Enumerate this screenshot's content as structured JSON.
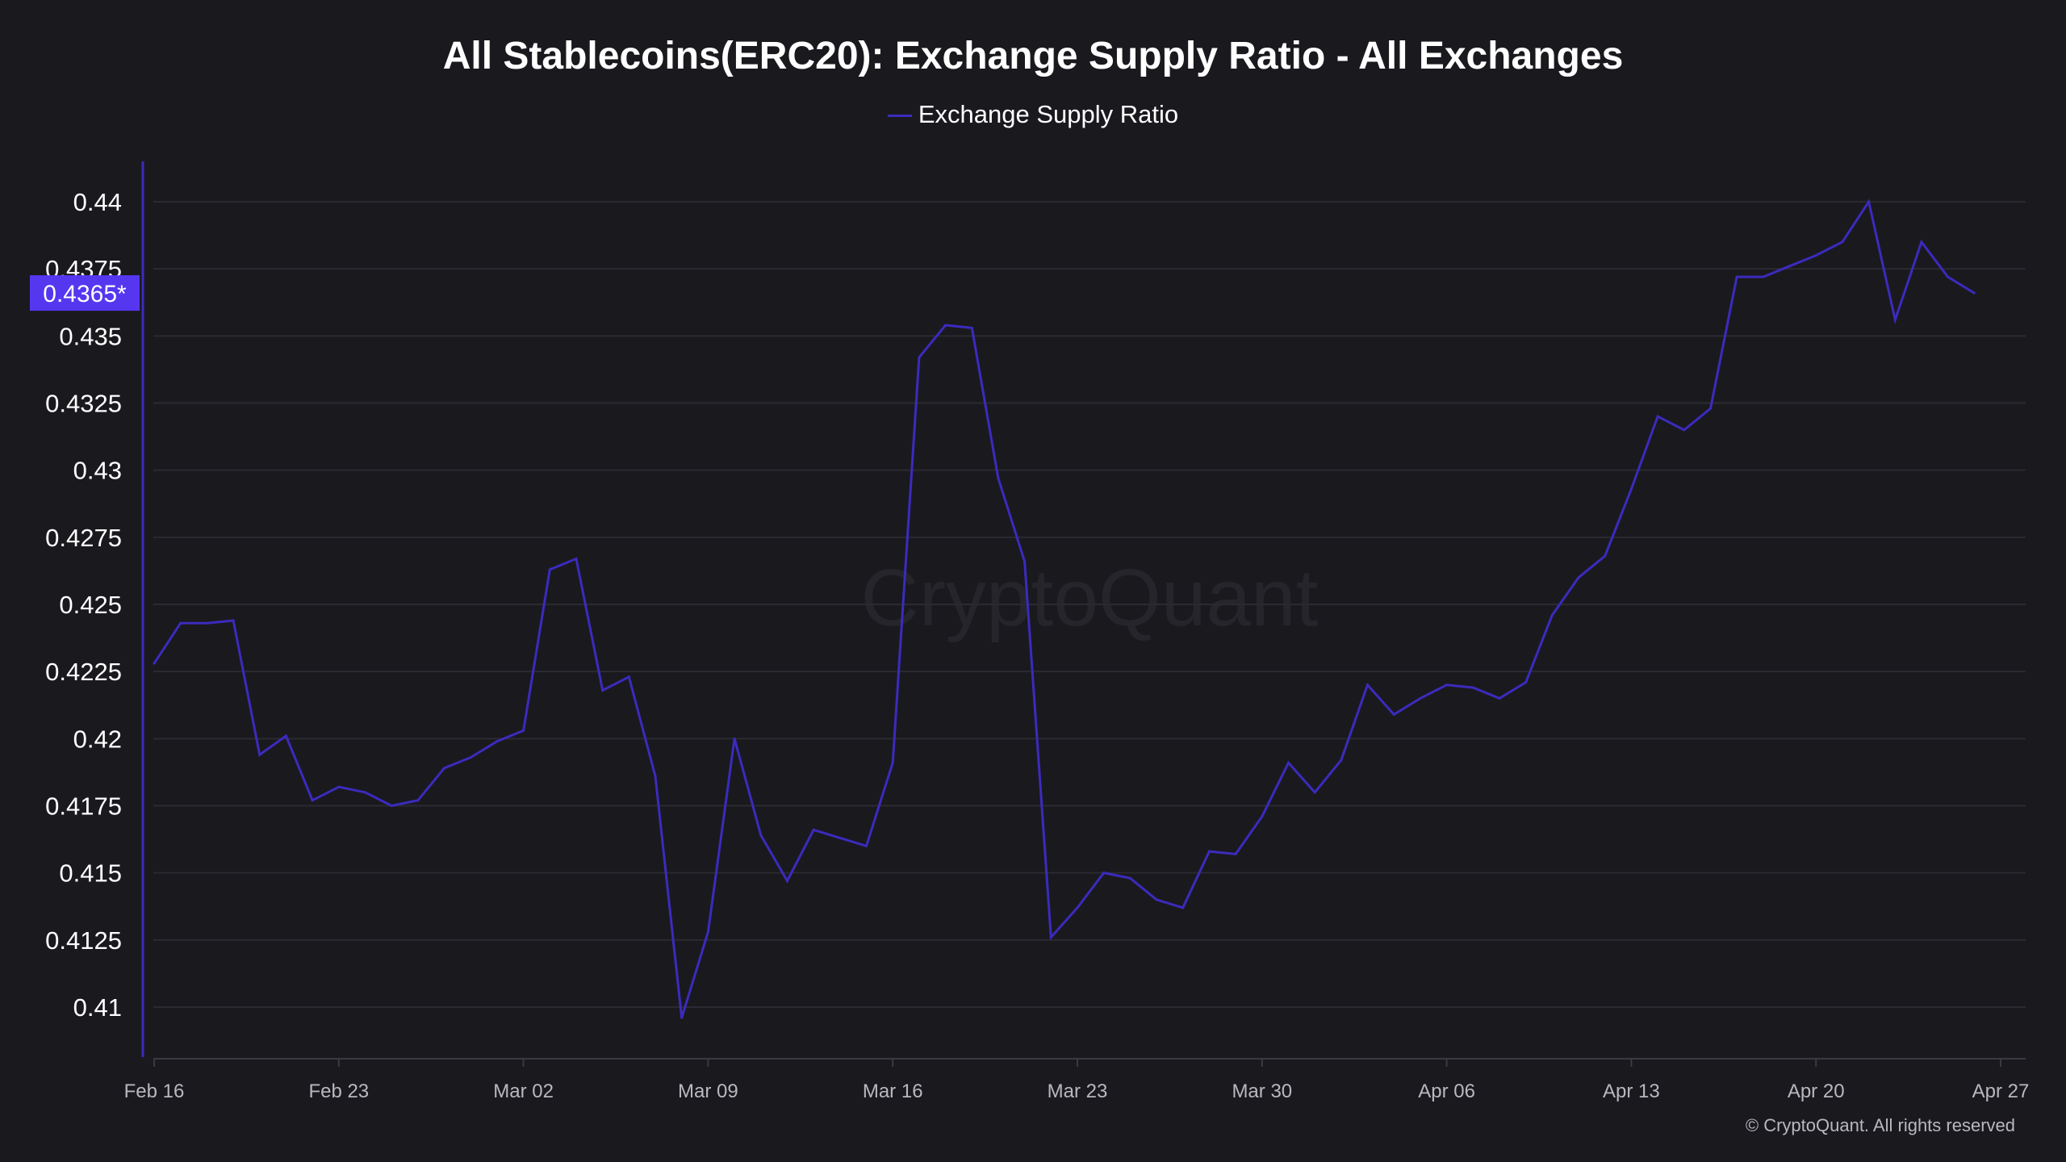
{
  "chart_data": {
    "type": "line",
    "title": "All Stablecoins(ERC20): Exchange Supply Ratio - All Exchanges",
    "legend": [
      "Exchange Supply Ratio"
    ],
    "legend_position": "top-center",
    "watermark": "CryptoQuant",
    "copyright": "© CryptoQuant. All rights reserved",
    "current_value_label": "0.4365*",
    "line_color": "#3b2bbd",
    "badge_color": "#5637f0",
    "background_color": "#1a191e",
    "grid": true,
    "ylim": [
      0.4092,
      0.4407
    ],
    "yticks": [
      "0.44",
      "0.4375",
      "0.435",
      "0.4325",
      "0.43",
      "0.4275",
      "0.425",
      "0.4225",
      "0.42",
      "0.4175",
      "0.415",
      "0.4125",
      "0.41"
    ],
    "xticks": [
      "Feb 16",
      "Feb 23",
      "Mar 02",
      "Mar 09",
      "Mar 16",
      "Mar 23",
      "Mar 30",
      "Apr 06",
      "Apr 13",
      "Apr 20",
      "Apr 27"
    ],
    "x_start": "Feb 16",
    "x_end": "Apr 27",
    "series": [
      {
        "name": "Exchange Supply Ratio",
        "values": [
          0.4228,
          0.4243,
          0.4243,
          0.4244,
          0.4194,
          0.4201,
          0.4177,
          0.4182,
          0.418,
          0.4175,
          0.4177,
          0.4189,
          0.4193,
          0.4199,
          0.4203,
          0.4263,
          0.4267,
          0.4218,
          0.4223,
          0.4186,
          0.4096,
          0.4128,
          0.42,
          0.4164,
          0.4147,
          0.4166,
          0.4163,
          0.416,
          0.4191,
          0.4342,
          0.4354,
          0.4353,
          0.4297,
          0.4266,
          0.4126,
          0.4137,
          0.415,
          0.4148,
          0.414,
          0.4137,
          0.4158,
          0.4157,
          0.4171,
          0.4191,
          0.418,
          0.4192,
          0.422,
          0.4209,
          0.4215,
          0.422,
          0.4219,
          0.4215,
          0.4221,
          0.4246,
          0.426,
          0.4268,
          0.4293,
          0.432,
          0.4315,
          0.4323,
          0.4372,
          0.4372,
          0.4376,
          0.438,
          0.4385,
          0.44,
          0.4356,
          0.4385,
          0.4372,
          0.4366
        ]
      }
    ]
  }
}
